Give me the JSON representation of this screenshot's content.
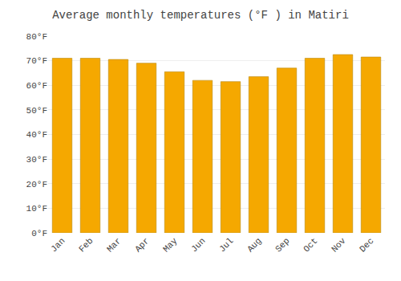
{
  "chart_data": {
    "type": "bar",
    "title": "Average monthly temperatures (°F ) in Matiri",
    "categories": [
      "Jan",
      "Feb",
      "Mar",
      "Apr",
      "May",
      "Jun",
      "Jul",
      "Aug",
      "Sep",
      "Oct",
      "Nov",
      "Dec"
    ],
    "values": [
      71.0,
      71.0,
      70.5,
      69.0,
      65.5,
      62.0,
      61.5,
      63.5,
      67.0,
      71.0,
      72.5,
      71.5
    ],
    "color": "#F5A800",
    "ylim": [
      0,
      80
    ],
    "yticks": [
      {
        "value": 0,
        "label": "0°F"
      },
      {
        "value": 10,
        "label": "10°F"
      },
      {
        "value": 20,
        "label": "20°F"
      },
      {
        "value": 30,
        "label": "30°F"
      },
      {
        "value": 40,
        "label": "40°F"
      },
      {
        "value": 50,
        "label": "50°F"
      },
      {
        "value": 60,
        "label": "60°F"
      },
      {
        "value": 70,
        "label": "70°F"
      },
      {
        "value": 80,
        "label": "80°F"
      }
    ],
    "grid": true
  }
}
